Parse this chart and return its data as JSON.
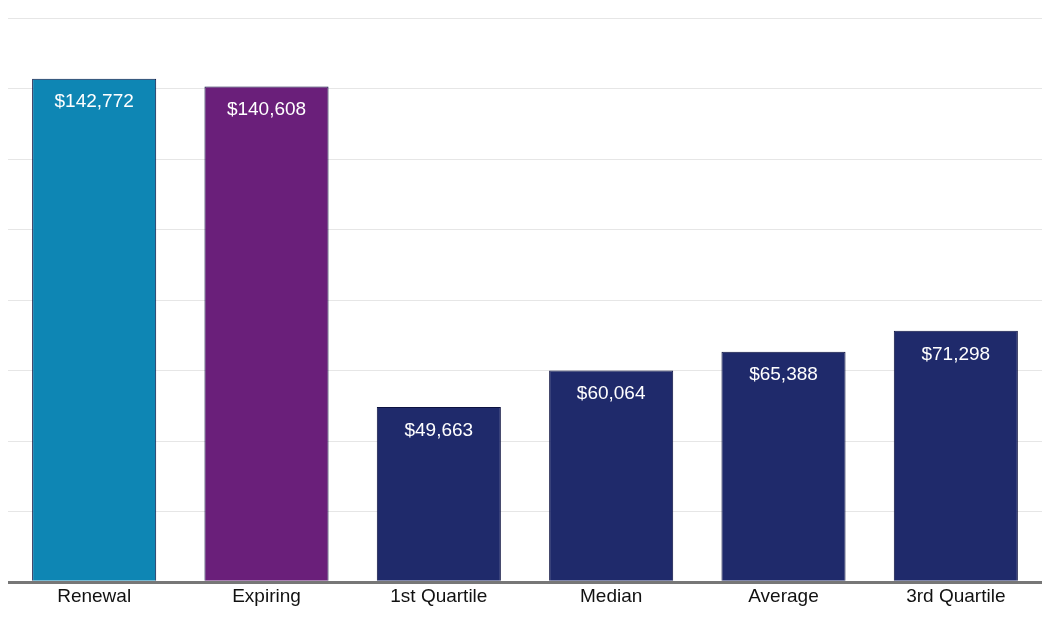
{
  "chart_data": {
    "type": "bar",
    "categories": [
      "Renewal",
      "Expiring",
      "1st Quartile",
      "Median",
      "Average",
      "3rd Quartile"
    ],
    "values": [
      142772,
      140608,
      49663,
      60064,
      65388,
      71298
    ],
    "colors": [
      "#0e86b4",
      "#6a1f7a",
      "#1f2a6b",
      "#1f2a6b",
      "#1f2a6b",
      "#1f2a6b"
    ],
    "value_labels": [
      "$142,772",
      "$140,608",
      "$49,663",
      "$60,064",
      "$65,388",
      "$71,298"
    ],
    "ylim": [
      0,
      160000
    ],
    "yticks": [
      {
        "value": 0,
        "label": null
      },
      {
        "value": 20000,
        "label": null
      },
      {
        "value": 40000,
        "label": null
      },
      {
        "value": 60000,
        "label": null
      },
      {
        "value": 80000,
        "label": null
      },
      {
        "value": 100000,
        "label": null
      },
      {
        "value": 120000,
        "label": null
      },
      {
        "value": 140000,
        "label": null
      },
      {
        "value": 160000,
        "label": null
      }
    ],
    "tick_labels": "x",
    "grid": "y",
    "legend": false
  }
}
